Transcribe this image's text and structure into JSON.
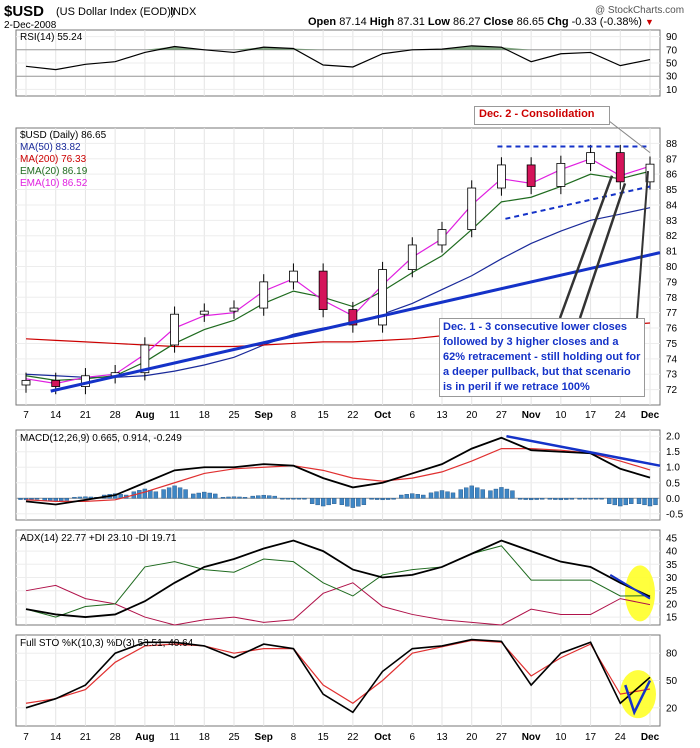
{
  "header": {
    "symbol": "$USD",
    "name": "(US Dollar Index (EOD))",
    "exchange": "INDX",
    "date": "2-Dec-2008",
    "open_label": "Open",
    "open": "87.14",
    "high_label": "High",
    "high": "87.31",
    "low_label": "Low",
    "low": "86.27",
    "close_label": "Close",
    "close": "86.65",
    "chg_label": "Chg",
    "chg": "-0.33 (-0.38%)",
    "watermark": "@ StockCharts.com"
  },
  "colors": {
    "up_candle": "#ffffff",
    "down_candle": "#d4145a",
    "ma50": "#1a2a9a",
    "ma200": "#cc0000",
    "ema20": "#1f6b1f",
    "ema10": "#e020e0",
    "trend": "#1432c8",
    "highlight": "#ffff33",
    "note_text": "#1432c8",
    "consol_text": "#cc0000"
  },
  "x_labels": [
    "7",
    "14",
    "21",
    "28",
    "Aug",
    "11",
    "18",
    "25",
    "Sep",
    "8",
    "15",
    "22",
    "Oct",
    "6",
    "13",
    "20",
    "27",
    "Nov",
    "10",
    "17",
    "24",
    "Dec"
  ],
  "rsi_panel": {
    "legend": "RSI(14) 55.24",
    "ticks": [
      "90",
      "70",
      "50",
      "30",
      "10"
    ]
  },
  "price_panel": {
    "legend": [
      {
        "text": "$USD (Daily) 86.65",
        "color": "#000000"
      },
      {
        "text": "MA(50) 83.82",
        "color": "#1a2a9a"
      },
      {
        "text": "MA(200) 76.33",
        "color": "#cc0000"
      },
      {
        "text": "EMA(20) 86.19",
        "color": "#1f6b1f"
      },
      {
        "text": "EMA(10) 86.52",
        "color": "#e020e0"
      }
    ],
    "ticks": [
      "88",
      "87",
      "86",
      "85",
      "84",
      "83",
      "82",
      "81",
      "80",
      "79",
      "78",
      "77",
      "76",
      "75",
      "74",
      "73",
      "72"
    ]
  },
  "macd_panel": {
    "legend": "MACD(12,26,9) 0.665, 0.914, -0.249",
    "ticks": [
      "2.0",
      "1.5",
      "1.0",
      "0.5",
      "0.0",
      "-0.5"
    ]
  },
  "adx_panel": {
    "legend": "ADX(14) 22.77 +DI 23.10 -DI 19.71",
    "ticks": [
      "45",
      "40",
      "35",
      "30",
      "25",
      "20",
      "15"
    ]
  },
  "sto_panel": {
    "legend": "Full STO %K(10,3) %D(3) 53.51, 40.64",
    "ticks": [
      "80",
      "50",
      "20"
    ]
  },
  "annotations": {
    "consolidation": "Dec. 2 - Consolidation",
    "commentary": "Dec. 1 - 3 consecutive lower closes followed by 3 higher closes and a 62% retracement - still holding out for a deeper pullback, but that scenario is in peril if we retrace 100%"
  },
  "chart_data": [
    {
      "type": "candlestick",
      "title": "$USD (Daily) 86.65",
      "ylim": [
        71,
        89
      ],
      "x": [
        "Jul 7",
        "Jul 14",
        "Jul 21",
        "Jul 28",
        "Aug 4",
        "Aug 11",
        "Aug 18",
        "Aug 25",
        "Sep 2",
        "Sep 8",
        "Sep 15",
        "Sep 22",
        "Sep 29",
        "Oct 6",
        "Oct 13",
        "Oct 20",
        "Oct 27",
        "Nov 3",
        "Nov 10",
        "Nov 17",
        "Nov 24",
        "Dec 1"
      ],
      "close": [
        72.6,
        72.2,
        72.9,
        73.1,
        74.9,
        76.9,
        77.1,
        77.3,
        79.0,
        79.7,
        77.2,
        76.2,
        79.8,
        81.4,
        82.4,
        85.1,
        86.6,
        85.2,
        86.7,
        87.4,
        85.5,
        86.65
      ],
      "series": [
        {
          "name": "MA(50)",
          "values": [
            73.0,
            72.9,
            72.8,
            72.8,
            72.9,
            73.2,
            73.6,
            74.1,
            74.9,
            75.6,
            76.0,
            76.3,
            76.9,
            77.6,
            78.5,
            79.4,
            80.5,
            81.5,
            82.3,
            83.0,
            83.4,
            83.82
          ]
        },
        {
          "name": "MA(200)",
          "values": [
            75.3,
            75.2,
            75.1,
            75.0,
            74.9,
            74.8,
            74.8,
            74.8,
            74.9,
            75.0,
            75.1,
            75.1,
            75.2,
            75.3,
            75.5,
            75.6,
            75.8,
            75.9,
            76.0,
            76.1,
            76.2,
            76.33
          ]
        },
        {
          "name": "EMA(20)",
          "values": [
            72.9,
            72.6,
            72.7,
            72.9,
            73.8,
            75.0,
            75.9,
            76.5,
            77.6,
            78.4,
            78.0,
            77.4,
            78.4,
            79.6,
            80.7,
            82.4,
            84.2,
            84.5,
            85.2,
            86.0,
            85.7,
            86.19
          ]
        },
        {
          "name": "EMA(10)",
          "values": [
            72.7,
            72.4,
            72.8,
            73.0,
            74.3,
            76.0,
            76.8,
            77.0,
            78.4,
            79.2,
            77.8,
            76.8,
            78.8,
            80.6,
            81.8,
            84.0,
            85.7,
            85.4,
            86.3,
            87.0,
            85.9,
            86.52
          ]
        }
      ]
    },
    {
      "type": "line",
      "title": "RSI(14) 55.24",
      "ylim": [
        0,
        100
      ],
      "series": [
        {
          "name": "RSI(14)",
          "values": [
            45,
            40,
            48,
            52,
            66,
            75,
            70,
            66,
            74,
            72,
            47,
            44,
            64,
            70,
            71,
            76,
            74,
            52,
            64,
            66,
            46,
            55.24
          ]
        }
      ]
    },
    {
      "type": "line",
      "title": "MACD(12,26,9) 0.665, 0.914, -0.249",
      "ylim": [
        -0.7,
        2.2
      ],
      "series": [
        {
          "name": "MACD",
          "values": [
            -0.1,
            -0.2,
            -0.05,
            0.1,
            0.5,
            0.9,
            1.0,
            1.0,
            1.1,
            1.05,
            0.65,
            0.35,
            0.5,
            0.8,
            1.1,
            1.6,
            1.95,
            1.55,
            1.5,
            1.45,
            0.95,
            0.665
          ]
        },
        {
          "name": "Signal",
          "values": [
            -0.05,
            -0.1,
            -0.1,
            -0.05,
            0.2,
            0.5,
            0.8,
            0.95,
            1.0,
            1.05,
            0.9,
            0.65,
            0.55,
            0.65,
            0.85,
            1.2,
            1.6,
            1.6,
            1.55,
            1.45,
            1.2,
            0.914
          ]
        },
        {
          "name": "Histogram",
          "values": [
            -0.05,
            -0.1,
            0.05,
            0.15,
            0.3,
            0.4,
            0.2,
            0.05,
            0.1,
            0.0,
            -0.25,
            -0.3,
            -0.05,
            0.15,
            0.25,
            0.4,
            0.35,
            -0.05,
            -0.05,
            0.0,
            -0.25,
            -0.249
          ]
        }
      ]
    },
    {
      "type": "line",
      "title": "ADX(14) 22.77 +DI 23.10 -DI 19.71",
      "ylim": [
        12,
        48
      ],
      "series": [
        {
          "name": "ADX(14)",
          "values": [
            18,
            16,
            15,
            16,
            21,
            28,
            34,
            37,
            41,
            44,
            40,
            33,
            30,
            31,
            34,
            39,
            44,
            40,
            36,
            34,
            28,
            22.77
          ]
        },
        {
          "name": "+DI",
          "values": [
            18,
            15,
            19,
            20,
            34,
            36,
            33,
            32,
            37,
            36,
            28,
            23,
            31,
            33,
            34,
            39,
            42,
            29,
            29,
            29,
            23,
            23.1
          ]
        },
        {
          "name": "-DI",
          "values": [
            25,
            27,
            22,
            20,
            15,
            12,
            14,
            15,
            13,
            14,
            24,
            28,
            19,
            16,
            14,
            13,
            12,
            18,
            16,
            16,
            22,
            19.71
          ]
        }
      ]
    },
    {
      "type": "line",
      "title": "Full STO %K(10,3) %D(3) 53.51, 40.64",
      "ylim": [
        0,
        100
      ],
      "series": [
        {
          "name": "%K",
          "values": [
            20,
            30,
            45,
            80,
            92,
            92,
            88,
            75,
            90,
            85,
            35,
            15,
            60,
            85,
            88,
            95,
            93,
            45,
            80,
            92,
            25,
            53.51
          ]
        },
        {
          "name": "%D",
          "values": [
            25,
            30,
            40,
            70,
            88,
            90,
            88,
            80,
            85,
            85,
            45,
            25,
            50,
            80,
            87,
            94,
            92,
            55,
            75,
            90,
            35,
            40.64
          ]
        }
      ]
    }
  ]
}
